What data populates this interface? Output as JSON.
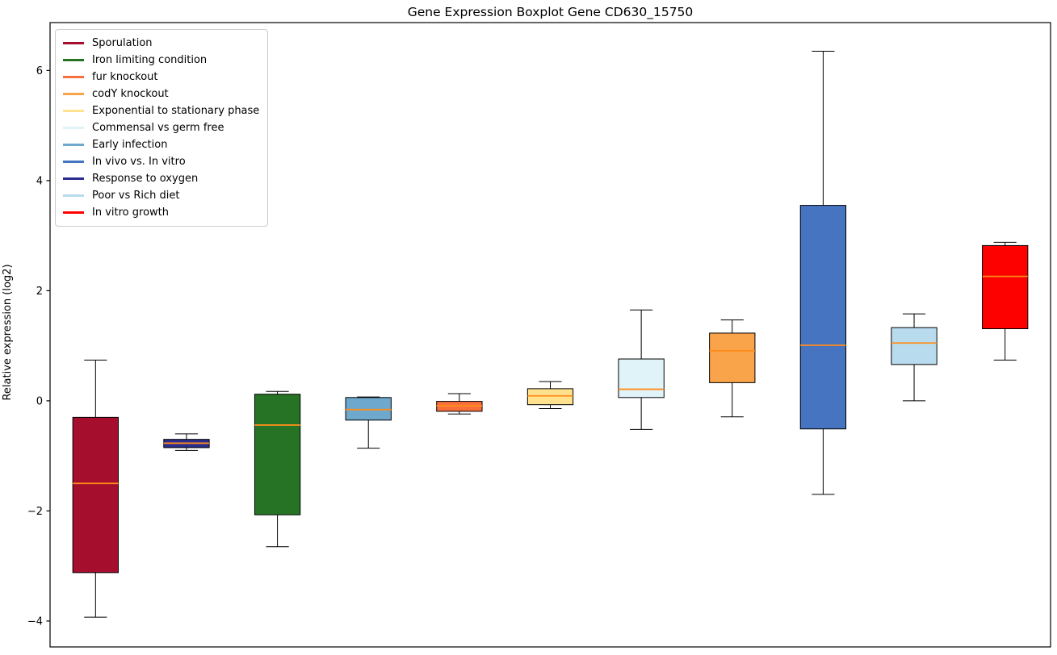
{
  "chart_data": {
    "type": "boxplot",
    "title": "Gene Expression Boxplot Gene CD630_15750",
    "xlabel": "",
    "ylabel": "Relative expression (log2)",
    "ylim": [
      -4.47,
      6.87
    ],
    "yticks": [
      -4,
      -2,
      0,
      2,
      4,
      6
    ],
    "ytick_labels": [
      "−4",
      "−2",
      "0",
      "2",
      "4",
      "6"
    ],
    "grid": false,
    "legend_position": "upper-left",
    "median_color": "#ff8c1a",
    "box_edge_color": "#000000",
    "axis_color": "#000000",
    "legend": [
      {
        "label": "Sporulation",
        "color": "#a50f2d"
      },
      {
        "label": "Iron limiting condition",
        "color": "#267326"
      },
      {
        "label": "fur knockout",
        "color": "#f96f3c"
      },
      {
        "label": "codY knockout",
        "color": "#f9a34a"
      },
      {
        "label": "Exponential to stationary phase",
        "color": "#ffe18e"
      },
      {
        "label": "Commensal vs germ free",
        "color": "#dff3f8"
      },
      {
        "label": "Early infection",
        "color": "#6fa8cd"
      },
      {
        "label": "In vivo vs. In vitro",
        "color": "#4674c1"
      },
      {
        "label": "Response to oxygen",
        "color": "#2b2d8e"
      },
      {
        "label": "Poor vs Rich diet",
        "color": "#b8dcee"
      },
      {
        "label": "In vitro growth",
        "color": "#fd0000"
      }
    ],
    "boxes": [
      {
        "name": "Sporulation",
        "color": "#a50f2d",
        "whisker_low": -3.93,
        "q1": -3.12,
        "median": -1.5,
        "q3": -0.3,
        "whisker_high": 0.74
      },
      {
        "name": "Response to oxygen",
        "color": "#2b2d8e",
        "whisker_low": -0.9,
        "q1": -0.85,
        "median": -0.77,
        "q3": -0.7,
        "whisker_high": -0.6
      },
      {
        "name": "Iron limiting condition",
        "color": "#267326",
        "whisker_low": -2.65,
        "q1": -2.07,
        "median": -0.44,
        "q3": 0.12,
        "whisker_high": 0.17
      },
      {
        "name": "Early infection",
        "color": "#6fa8cd",
        "whisker_low": -0.86,
        "q1": -0.35,
        "median": -0.16,
        "q3": 0.06,
        "whisker_high": 0.07
      },
      {
        "name": "fur knockout",
        "color": "#f96f3c",
        "whisker_low": -0.24,
        "q1": -0.19,
        "median": -0.09,
        "q3": -0.01,
        "whisker_high": 0.13
      },
      {
        "name": "Exponential to stationary phase",
        "color": "#ffe18e",
        "whisker_low": -0.14,
        "q1": -0.07,
        "median": 0.09,
        "q3": 0.22,
        "whisker_high": 0.35
      },
      {
        "name": "Commensal vs germ free",
        "color": "#dff3f8",
        "whisker_low": -0.52,
        "q1": 0.06,
        "median": 0.21,
        "q3": 0.76,
        "whisker_high": 1.65
      },
      {
        "name": "codY knockout",
        "color": "#f9a34a",
        "whisker_low": -0.29,
        "q1": 0.33,
        "median": 0.91,
        "q3": 1.23,
        "whisker_high": 1.47
      },
      {
        "name": "In vivo vs. In vitro",
        "color": "#4674c1",
        "whisker_low": -1.7,
        "q1": -0.51,
        "median": 1.01,
        "q3": 3.55,
        "whisker_high": 6.35
      },
      {
        "name": "Poor vs Rich diet",
        "color": "#b8dcee",
        "whisker_low": 0.0,
        "q1": 0.66,
        "median": 1.05,
        "q3": 1.33,
        "whisker_high": 1.58
      },
      {
        "name": "In vitro growth",
        "color": "#fd0000",
        "whisker_low": 0.74,
        "q1": 1.31,
        "median": 2.26,
        "q3": 2.82,
        "whisker_high": 2.88
      }
    ]
  }
}
